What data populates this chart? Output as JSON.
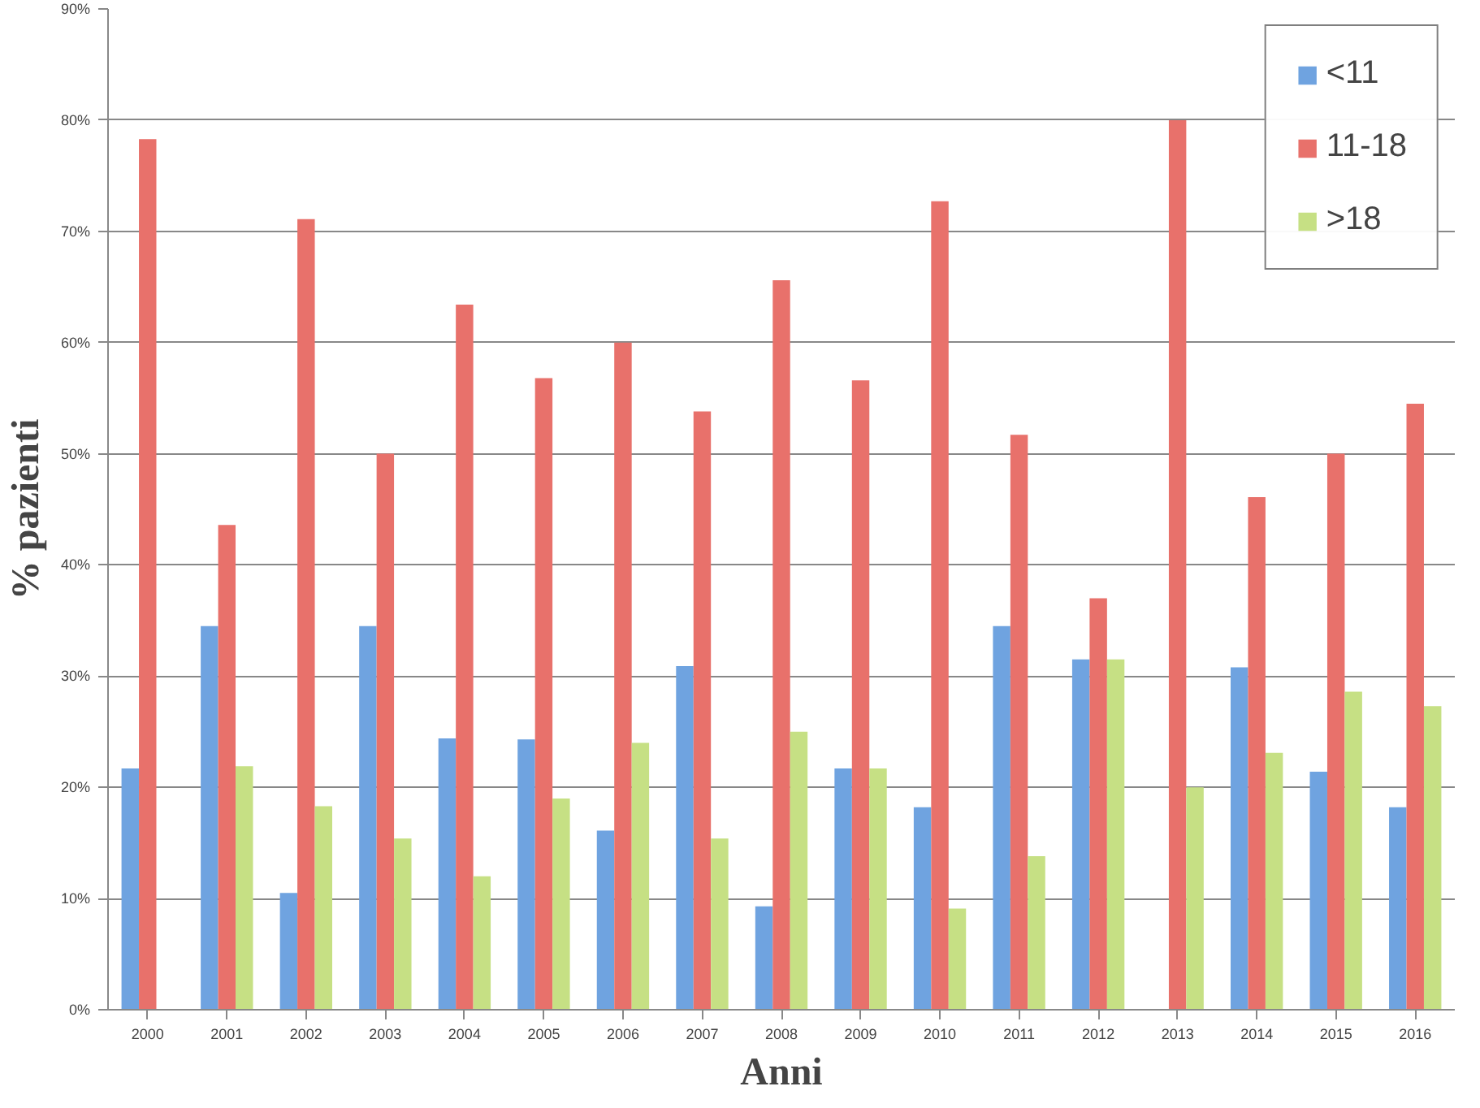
{
  "chart_data": {
    "type": "bar",
    "xlabel": "Anni",
    "ylabel": "% pazienti",
    "categories": [
      "2000",
      "2001",
      "2002",
      "2003",
      "2004",
      "2005",
      "2006",
      "2007",
      "2008",
      "2009",
      "2010",
      "2011",
      "2012",
      "2013",
      "2014",
      "2015",
      "2016"
    ],
    "series": [
      {
        "name": "<11",
        "color": "#6fa3e0",
        "values": [
          21.7,
          34.5,
          10.5,
          34.5,
          24.4,
          24.3,
          16.1,
          30.9,
          9.3,
          21.7,
          18.2,
          34.5,
          31.5,
          0,
          30.8,
          21.4,
          18.2
        ]
      },
      {
        "name": "11-18",
        "color": "#e8716b",
        "values": [
          78.3,
          43.6,
          71.1,
          50,
          63.4,
          56.8,
          60,
          53.8,
          65.6,
          56.6,
          72.7,
          51.7,
          37,
          80,
          46.1,
          50,
          54.5
        ]
      },
      {
        "name": ">18",
        "color": "#c6e084",
        "values": [
          0,
          21.9,
          18.3,
          15.4,
          12,
          19,
          24,
          15.4,
          25,
          21.7,
          9.1,
          13.8,
          31.5,
          20,
          23.1,
          28.6,
          27.3
        ]
      }
    ],
    "ylim": [
      0,
      90
    ],
    "yticks": [
      {
        "value": 0,
        "label": "0%"
      },
      {
        "value": 10,
        "label": "10%"
      },
      {
        "value": 20,
        "label": "20%"
      },
      {
        "value": 30,
        "label": "30%"
      },
      {
        "value": 40,
        "label": "40%"
      },
      {
        "value": 50,
        "label": "50%"
      },
      {
        "value": 60,
        "label": "60%"
      },
      {
        "value": 70,
        "label": "70%"
      },
      {
        "value": 80,
        "label": "80%"
      },
      {
        "value": 90,
        "label": "90%"
      }
    ],
    "grid": "y",
    "legend": "top right"
  }
}
